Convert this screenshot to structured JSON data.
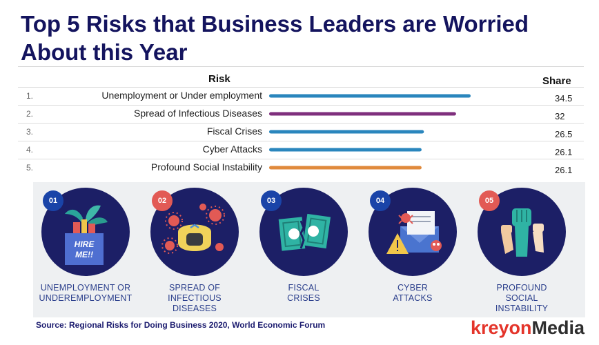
{
  "title": "Top 5 Risks that Business Leaders are Worried About this Year",
  "chart_data": {
    "type": "bar",
    "orientation": "horizontal",
    "column_headers": {
      "label": "Risk",
      "value": "Share"
    },
    "categories": [
      "Unemployment or Under employment",
      "Spread of Infectious Diseases",
      "Fiscal Crises",
      "Cyber Attacks",
      "Profound Social Instability"
    ],
    "row_numbers": [
      "1.",
      "2.",
      "3.",
      "4.",
      "5."
    ],
    "values": [
      34.5,
      32,
      26.5,
      26.1,
      26.1
    ],
    "value_labels": [
      "34.5",
      "32",
      "26.5",
      "26.1",
      "26.1"
    ],
    "bar_colors": [
      "#2a86bd",
      "#7f2f7d",
      "#2a86bd",
      "#2a86bd",
      "#e08a3c"
    ],
    "grid": false
  },
  "infographic": {
    "cards": [
      {
        "number": "01",
        "badge_color": "#1a44a8",
        "caption_line1": "UNEMPLOYMENT OR",
        "caption_line2": "UNDEREMPLOYMENT",
        "caption_line3": "",
        "sign_text_line1": "HIRE",
        "sign_text_line2": "ME!!"
      },
      {
        "number": "02",
        "badge_color": "#e25a55",
        "caption_line1": "SPREAD OF",
        "caption_line2": "INFECTIOUS",
        "caption_line3": "DISEASES"
      },
      {
        "number": "03",
        "badge_color": "#1a44a8",
        "caption_line1": "FISCAL",
        "caption_line2": "CRISES",
        "caption_line3": ""
      },
      {
        "number": "04",
        "badge_color": "#1a44a8",
        "caption_line1": "CYBER",
        "caption_line2": "ATTACKS",
        "caption_line3": ""
      },
      {
        "number": "05",
        "badge_color": "#e25a55",
        "caption_line1": "PROFOUND",
        "caption_line2": "SOCIAL",
        "caption_line3": "INSTABILITY"
      }
    ]
  },
  "source": "Source: Regional Risks for Doing Business 2020, World Economic Forum",
  "brand": {
    "part1": "kreyon",
    "part2": "Media",
    "color1": "#e4342a",
    "color2": "#2e2e2e"
  }
}
